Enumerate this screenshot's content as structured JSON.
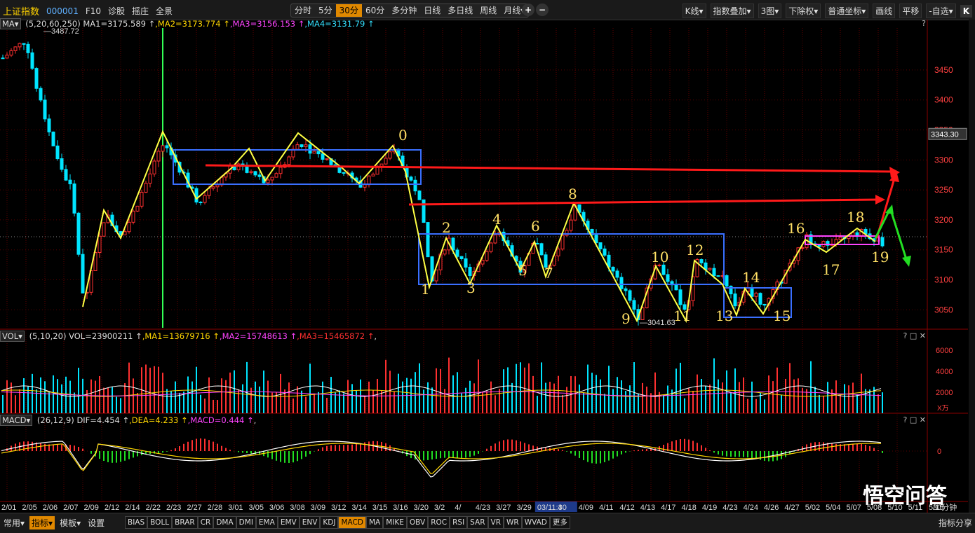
{
  "toolbar": {
    "name": "上证指数",
    "code": "000001",
    "buttons": [
      "F10",
      "诊股",
      "摇庄",
      "全景"
    ],
    "periods": [
      "分时",
      "5分",
      "30分",
      "60分",
      "多分钟",
      "日线",
      "多日线",
      "周线",
      "月线▾"
    ],
    "active_period": "30分",
    "zoom": [
      "+",
      "−"
    ],
    "right": [
      "K线▾",
      "指数叠加▾",
      "3图▾",
      "下除权▾",
      "普通坐标▾",
      "画线",
      "平移",
      "-自选▾"
    ],
    "k_button": "K"
  },
  "price_pane": {
    "tag": "MA▾",
    "params": "(5,20,60,250)",
    "ma1": "MA1=3175.589 ↑",
    "ma2": ",MA2=3173.774 ↑",
    "ma3": ",MA3=3156.153 ↑",
    "ma4": ",MA4=3131.79 ↑",
    "help": "?",
    "y_ticks": [
      "3450",
      "3400",
      "3350",
      "3300",
      "3250",
      "3200",
      "3150",
      "3100",
      "3050"
    ],
    "current_price": "3343.30",
    "high_label": "3487.72",
    "low_label": "3041.63",
    "wave_labels": [
      "0",
      "1",
      "2",
      "3",
      "4",
      "5",
      "6",
      "7",
      "8",
      "9",
      "10",
      "11",
      "12",
      "13",
      "14",
      "15",
      "16",
      "17",
      "18",
      "19"
    ]
  },
  "vol_pane": {
    "tag": "VOL▾",
    "params": "(5,10,20)",
    "vol": "VOL=23900211 ↑",
    "ma1": ",MA1=13679716 ↑",
    "ma2": ",MA2=15748613 ↑",
    "ma3": ",MA3=15465872 ↑",
    "tail": ",",
    "ctrl": "? □ ✕",
    "y_ticks": [
      "6000",
      "4000",
      "2000"
    ],
    "unit": "X万"
  },
  "macd_pane": {
    "tag": "MACD▾",
    "params": "(26,12,9)",
    "dif": "DIF=4.454 ↑",
    "dea": ",DEA=4.233 ↑",
    "macd": ",MACD=0.444 ↑",
    "tail": ",",
    "ctrl": "? □ ✕",
    "y_ticks": [
      "0"
    ]
  },
  "dates": [
    "2/01",
    "2/05",
    "2/06",
    "2/07",
    "2/09",
    "2/12",
    "2/14",
    "2/22",
    "2/23",
    "2/27",
    "2/28",
    "3/01",
    "3/05",
    "3/06",
    "3/08",
    "3/09",
    "3/12",
    "3/14",
    "3/15",
    "3/16",
    "3/20",
    "3/2",
    "4/",
    "4/23",
    "3/27",
    "3/29",
    "03/11:30",
    "4",
    "4/09",
    "4/11",
    "4/12",
    "4/13",
    "4/17",
    "4/18",
    "4/19",
    "4/23",
    "4/24",
    "4/26",
    "4/27",
    "5/02",
    "5/04",
    "5/07",
    "5/08",
    "5/10",
    "5/11",
    "5/15",
    "30分钟"
  ],
  "bottom": {
    "menu1": "常用▾",
    "menu2": "指标▾",
    "menu3": "模板▾",
    "settings": "设置",
    "tabs": [
      "BIAS",
      "BOLL",
      "BRAR",
      "CR",
      "DMA",
      "DMI",
      "EMA",
      "EMV",
      "ENV",
      "KDJ",
      "MACD",
      "MA",
      "MIKE",
      "OBV",
      "ROC",
      "RSI",
      "SAR",
      "VR",
      "WR",
      "WVAD",
      "更多"
    ],
    "active_tab": "MACD",
    "share": "指标分享",
    "watermark": "悟空问答"
  }
}
